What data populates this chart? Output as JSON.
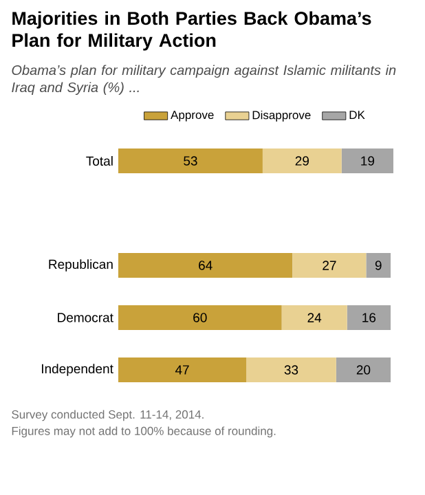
{
  "chart_data": {
    "type": "bar",
    "orientation": "horizontal",
    "stacked": true,
    "data_labels": true,
    "legend": "top",
    "title": "Majorities in Both Parties Back Obama’s Plan for Military Action",
    "subtitle": "Obama’s plan for military campaign against Islamic militants in Iraq and Syria (%) ...",
    "categories": [
      "Total",
      null,
      "Republican",
      "Democrat",
      "Independent"
    ],
    "series": [
      {
        "name": "Approve",
        "color": "#c9a23a",
        "values": [
          53,
          null,
          64,
          60,
          47
        ]
      },
      {
        "name": "Disapprove",
        "color": "#e9d192",
        "values": [
          29,
          null,
          27,
          24,
          33
        ]
      },
      {
        "name": "DK",
        "color": "#a6a6a6",
        "values": [
          19,
          null,
          9,
          16,
          20
        ]
      }
    ],
    "annotations": [
      "Survey conducted Sept. 11-14, 2014.",
      "Figures may not add to 100% because of rounding."
    ]
  }
}
